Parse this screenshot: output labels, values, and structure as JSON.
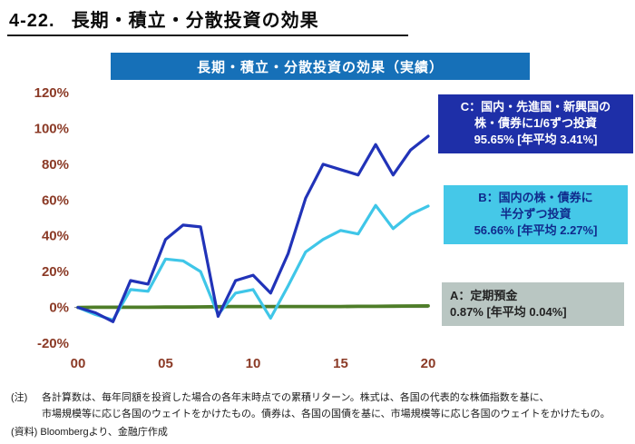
{
  "page": {
    "title_number": "4-22.",
    "title_text": "長期・積立・分散投資の効果",
    "banner": "長期・積立・分散投資の効果（実績）",
    "banner_bg": "#1670b8"
  },
  "chart_data": {
    "type": "line",
    "title": "長期・積立・分散投資の効果（実績）",
    "x": [
      2000,
      2001,
      2002,
      2003,
      2004,
      2005,
      2006,
      2007,
      2008,
      2009,
      2010,
      2011,
      2012,
      2013,
      2014,
      2015,
      2016,
      2017,
      2018,
      2019,
      2020
    ],
    "x_tick_years": [
      2000,
      2005,
      2010,
      2015,
      2020
    ],
    "x_tick_labels": [
      "00",
      "05",
      "10",
      "15",
      "20"
    ],
    "y_ticks": [
      120,
      100,
      80,
      60,
      40,
      20,
      0,
      -20
    ],
    "y_tick_labels": [
      "120%",
      "100%",
      "80%",
      "60%",
      "40%",
      "20%",
      "0%",
      "-20%"
    ],
    "ylim": [
      -20,
      120
    ],
    "grid": false,
    "axis_label_color": "#8b3a26",
    "series": [
      {
        "id": "C",
        "label": "国内・先進国・新興国の株・債券に1/6ずつ投資",
        "color": "#2133b8",
        "final": "95.65%",
        "annual_avg": "3.41%",
        "values": [
          0,
          -3,
          -8,
          15,
          13,
          38,
          46,
          45,
          -5,
          15,
          18,
          8,
          30,
          61,
          80,
          77,
          74,
          91,
          74,
          88,
          95.65
        ]
      },
      {
        "id": "B",
        "label": "国内の株・債券に半分ずつ投資",
        "color": "#3fc6e8",
        "final": "56.66%",
        "annual_avg": "2.27%",
        "values": [
          0,
          -4,
          -7,
          10,
          9,
          27,
          26,
          20,
          -4,
          8,
          10,
          -6,
          12,
          31,
          38,
          43,
          41,
          57,
          44,
          52,
          56.66
        ]
      },
      {
        "id": "A",
        "label": "定期預金",
        "color": "#4e7d28",
        "final": "0.87%",
        "annual_avg": "0.04%",
        "values": [
          0,
          0.1,
          0.1,
          0.1,
          0.1,
          0.2,
          0.2,
          0.3,
          0.4,
          0.5,
          0.5,
          0.5,
          0.5,
          0.5,
          0.5,
          0.5,
          0.6,
          0.6,
          0.7,
          0.8,
          0.87
        ]
      }
    ]
  },
  "callouts": {
    "c": {
      "bg": "#1e2fa8",
      "text_color": "#ffffff",
      "lines": [
        "C：国内・先進国・新興国の",
        "株・債券に1/6ずつ投資",
        "95.65%  [年平均 3.41%]"
      ]
    },
    "b": {
      "bg": "#45c8e8",
      "text_color": "#102a8c",
      "lines": [
        "B：国内の株・債券に",
        "半分ずつ投資",
        "56.66%  [年平均 2.27%]"
      ]
    },
    "a": {
      "bg": "#b9c6c2",
      "text_color": "#222222",
      "lines": [
        "A：定期預金",
        "0.87%  [年平均 0.04%]"
      ]
    }
  },
  "notes": {
    "note_label": "(注)",
    "note_lines": [
      "各計算数は、毎年同額を投資した場合の各年末時点での累積リターン。株式は、各国の代表的な株価指数を基に、",
      "市場規模等に応じ各国のウェイトをかけたもの。債券は、各国の国債を基に、市場規模等に応じ各国のウェイトをかけたもの。"
    ],
    "source": "(資料) Bloombergより、金融庁作成"
  }
}
